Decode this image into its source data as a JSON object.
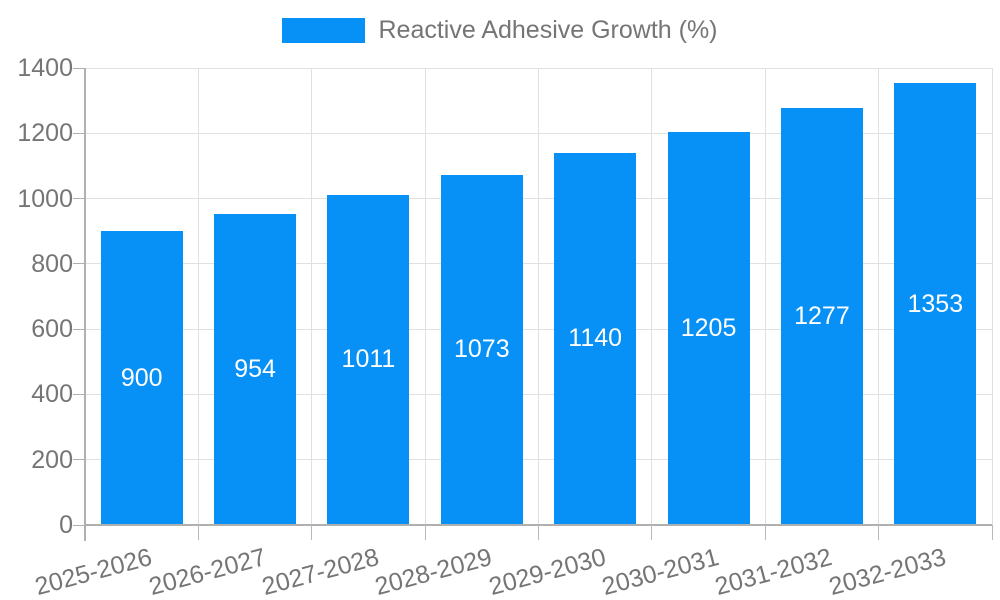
{
  "legend": {
    "label": "Reactive Adhesive Growth (%)",
    "swatch_color": "#0790f5"
  },
  "chart_data": {
    "type": "bar",
    "title": "Reactive Adhesive Growth (%)",
    "categories": [
      "2025-2026",
      "2026-2027",
      "2027-2028",
      "2028-2029",
      "2029-2030",
      "2030-2031",
      "2031-2032",
      "2032-2033"
    ],
    "series": [
      {
        "name": "Reactive Adhesive Growth (%)",
        "values": [
          900,
          954,
          1011,
          1073,
          1140,
          1205,
          1277,
          1353
        ]
      }
    ],
    "yticks": [
      0,
      200,
      400,
      600,
      800,
      1000,
      1200,
      1400
    ],
    "ylim": [
      0,
      1400
    ],
    "xlabel": "",
    "ylabel": "",
    "grid": true,
    "legend_position": "top",
    "bar_color": "#0790f5",
    "value_label_color": "#ffffff",
    "axis_text_color": "#757575",
    "gridline_color": "#e0e0e0",
    "axis_line_color": "#b0b0b0"
  }
}
